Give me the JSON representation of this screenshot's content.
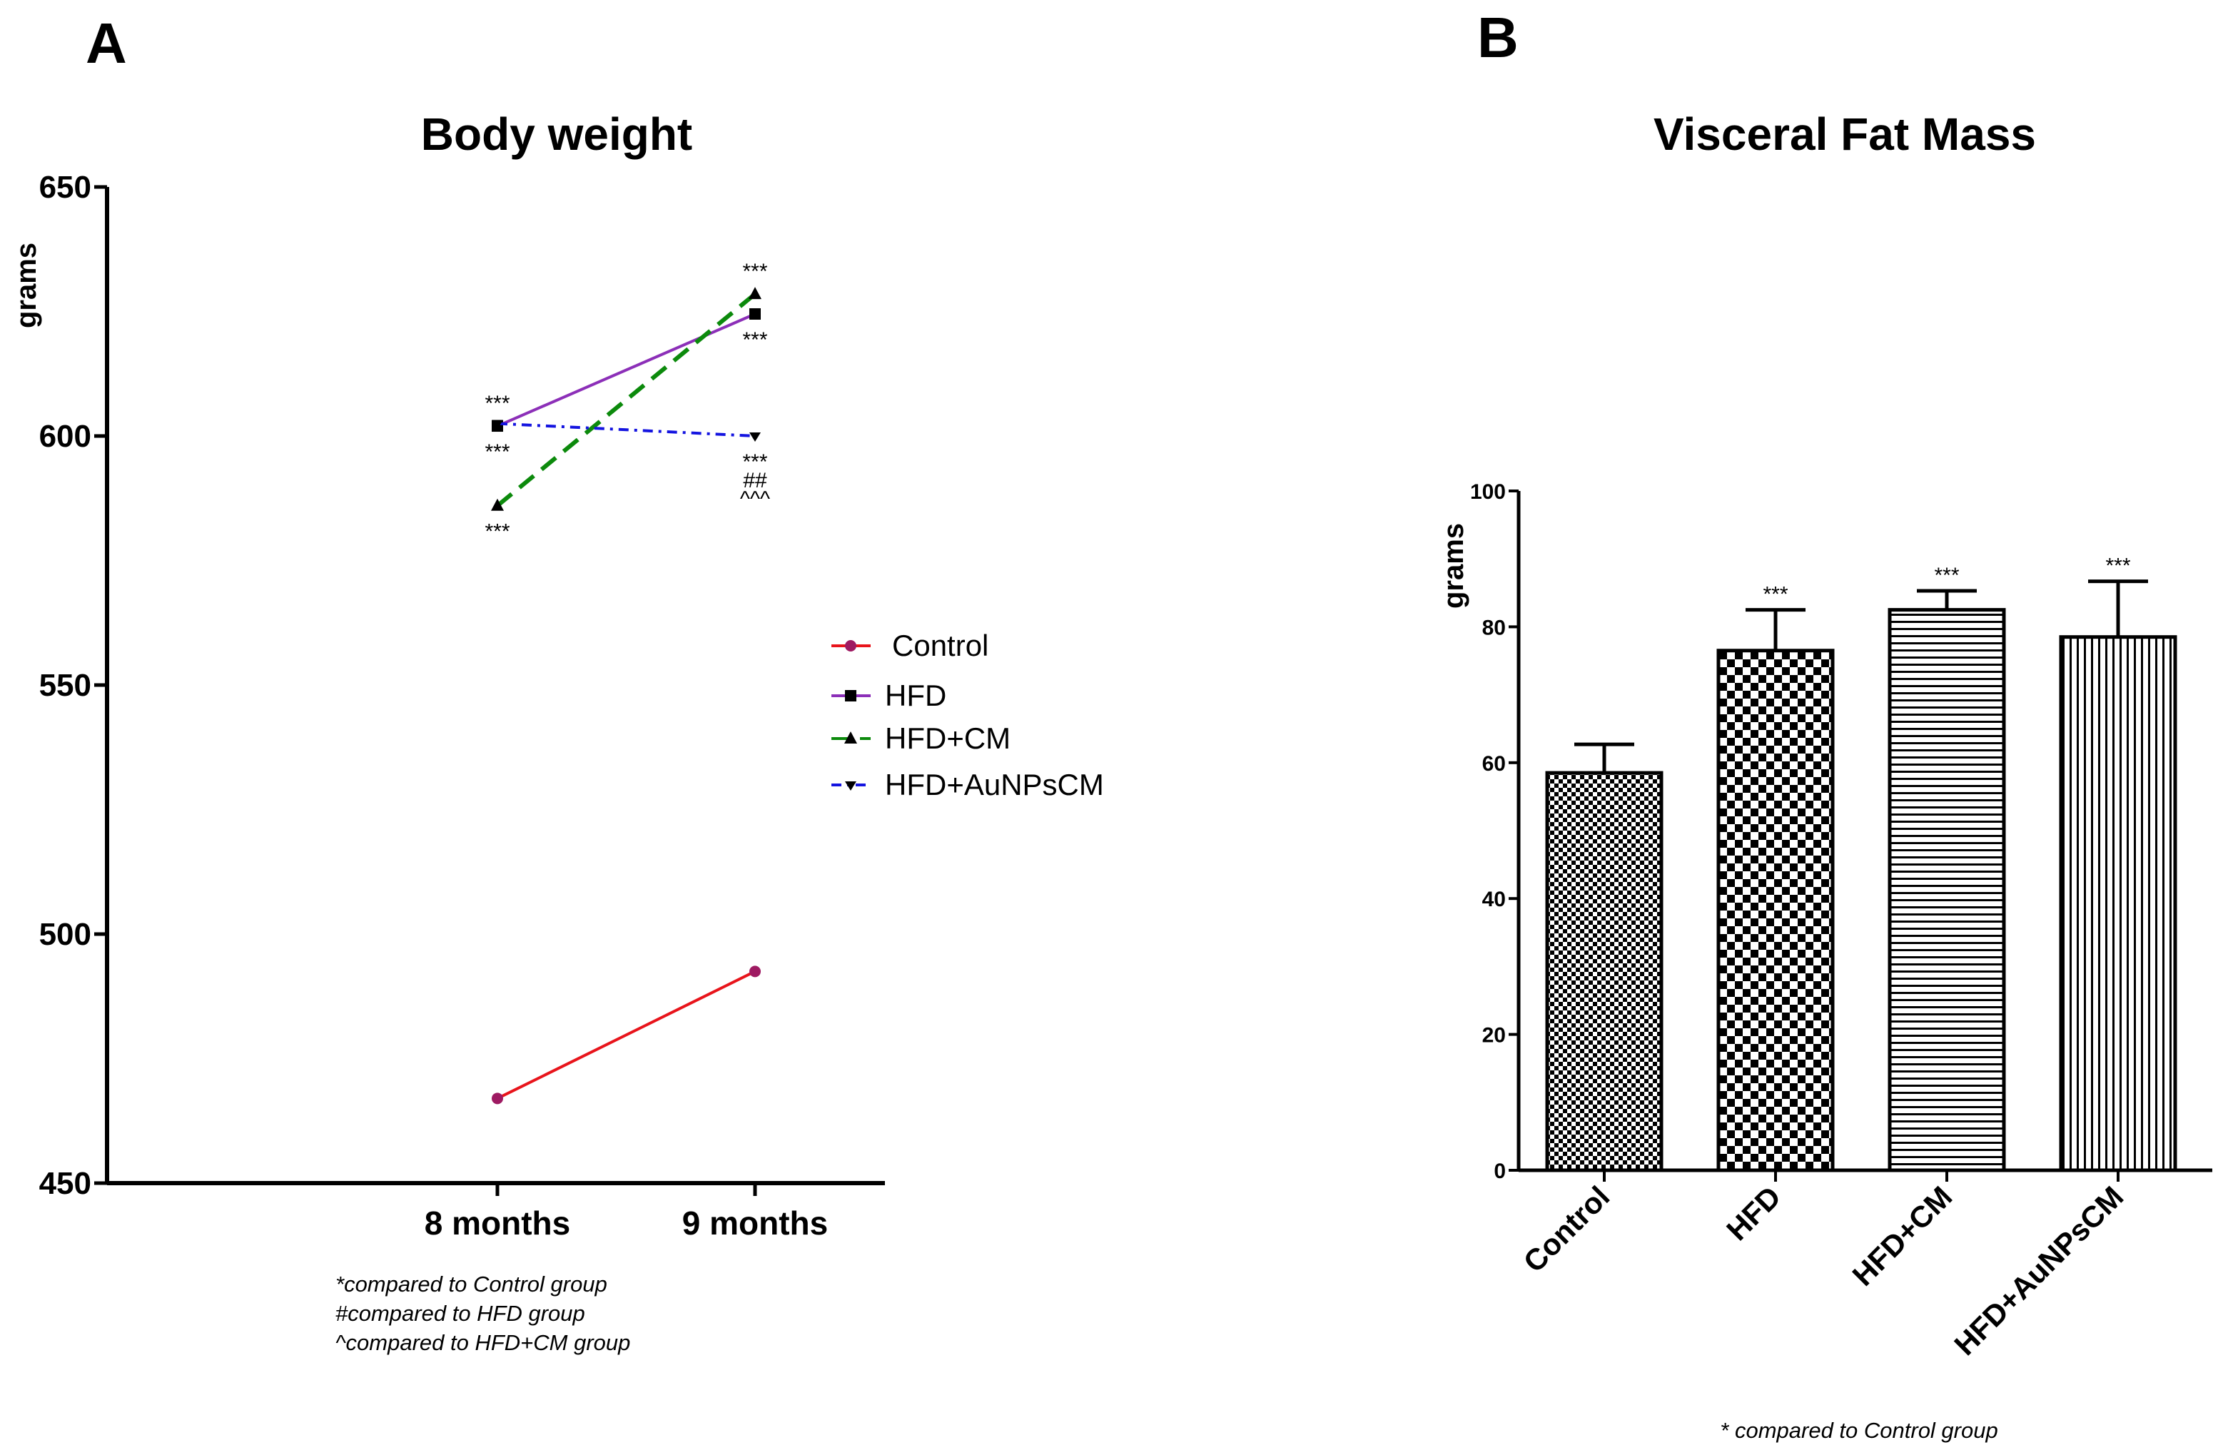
{
  "panels": {
    "a_label": "A",
    "b_label": "B"
  },
  "colors": {
    "control": "#e8141b",
    "control_marker": "#9e1a62",
    "hfd": "#8c2fb8",
    "hfd_cm": "#0c8a0c",
    "hfd_aunps": "#1414e0",
    "black": "#000000"
  },
  "chart_data": [
    {
      "type": "line",
      "title": "Body weight",
      "xlabel": "",
      "ylabel": "grams",
      "ylim": [
        450,
        650
      ],
      "yticks": [
        450,
        500,
        550,
        600,
        650
      ],
      "categories": [
        "8 months",
        "9 months"
      ],
      "series": [
        {
          "name": "Control",
          "values": [
            467,
            492.5
          ],
          "marker": "circle",
          "dash": "solid",
          "color": "#e8141b"
        },
        {
          "name": "HFD",
          "values": [
            602,
            624.5
          ],
          "marker": "square",
          "dash": "solid",
          "color": "#8c2fb8"
        },
        {
          "name": "HFD+CM",
          "values": [
            586,
            628.5
          ],
          "marker": "triangle",
          "dash": "dashed",
          "color": "#0c8a0c"
        },
        {
          "name": "HFD+AuNPsCM",
          "values": [
            602.5,
            600
          ],
          "marker": "down-triangle",
          "dash": "dashdot",
          "color": "#1414e0"
        }
      ],
      "annotations": [
        {
          "text": "***",
          "category": "8 months",
          "series": "HFD",
          "position": "above"
        },
        {
          "text": "***",
          "category": "8 months",
          "series": "HFD",
          "position": "below"
        },
        {
          "text": "***",
          "category": "8 months",
          "series": "HFD+CM",
          "position": "below"
        },
        {
          "text": "***",
          "category": "9 months",
          "series": "HFD+CM",
          "position": "above"
        },
        {
          "text": "***",
          "category": "9 months",
          "series": "HFD",
          "position": "below"
        },
        {
          "text": "***",
          "category": "9 months",
          "series": "HFD+AuNPsCM",
          "position": "below"
        },
        {
          "text": "##",
          "category": "9 months",
          "series": "HFD+AuNPsCM",
          "position": "below"
        },
        {
          "text": "^^^",
          "category": "9 months",
          "series": "HFD+AuNPsCM",
          "position": "below"
        }
      ],
      "legend_position": "right",
      "footnotes": [
        "*compared to Control group",
        "#compared to HFD group",
        "^compared to HFD+CM group"
      ]
    },
    {
      "type": "bar",
      "title": "Visceral Fat Mass",
      "xlabel": "",
      "ylabel": "grams",
      "ylim": [
        0,
        100
      ],
      "yticks": [
        0,
        20,
        40,
        60,
        80,
        100
      ],
      "categories": [
        "Control",
        "HFD",
        "HFD+CM",
        "HFD+AuNPsCM"
      ],
      "values": [
        58.5,
        76.5,
        82.5,
        78.5
      ],
      "errors": [
        4.2,
        6,
        2.8,
        8.2
      ],
      "patterns": [
        "fine-checker",
        "checker",
        "horizontal-lines",
        "vertical-lines"
      ],
      "significance": [
        "",
        "***",
        "***",
        "***"
      ],
      "footnotes": [
        "* compared to Control group"
      ]
    }
  ]
}
